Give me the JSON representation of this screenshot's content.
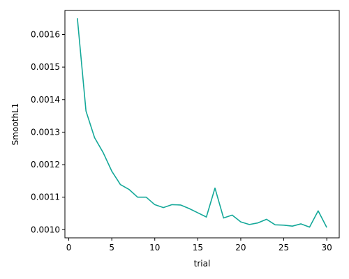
{
  "chart_data": {
    "type": "line",
    "title": "",
    "xlabel": "trial",
    "ylabel": "SmoothL1",
    "xlim": [
      -0.45,
      31.45
    ],
    "ylim": [
      0.000975,
      0.001674
    ],
    "xticks": [
      0,
      5,
      10,
      15,
      20,
      25,
      30
    ],
    "yticks": [
      0.001,
      0.0011,
      0.0012,
      0.0013,
      0.0014,
      0.0015,
      0.0016
    ],
    "ytick_labels": [
      "0.0010",
      "0.0011",
      "0.0012",
      "0.0013",
      "0.0014",
      "0.0015",
      "0.0016"
    ],
    "grid": false,
    "legend": "none",
    "series": [
      {
        "color": "#14a899",
        "x": [
          1,
          2,
          3,
          4,
          5,
          6,
          7,
          8,
          9,
          10,
          11,
          12,
          13,
          14,
          15,
          16,
          17,
          18,
          19,
          20,
          21,
          22,
          23,
          24,
          25,
          26,
          27,
          28,
          29,
          30
        ],
        "y": [
          0.00165,
          0.001365,
          0.001283,
          0.001237,
          0.00118,
          0.001139,
          0.001124,
          0.0011,
          0.0011,
          0.001077,
          0.001068,
          0.001077,
          0.001076,
          0.001065,
          0.001052,
          0.001039,
          0.001128,
          0.001036,
          0.001045,
          0.001024,
          0.001016,
          0.001021,
          0.001032,
          0.001015,
          0.001014,
          0.001011,
          0.001018,
          0.001008,
          0.001058,
          0.001007
        ]
      }
    ]
  }
}
